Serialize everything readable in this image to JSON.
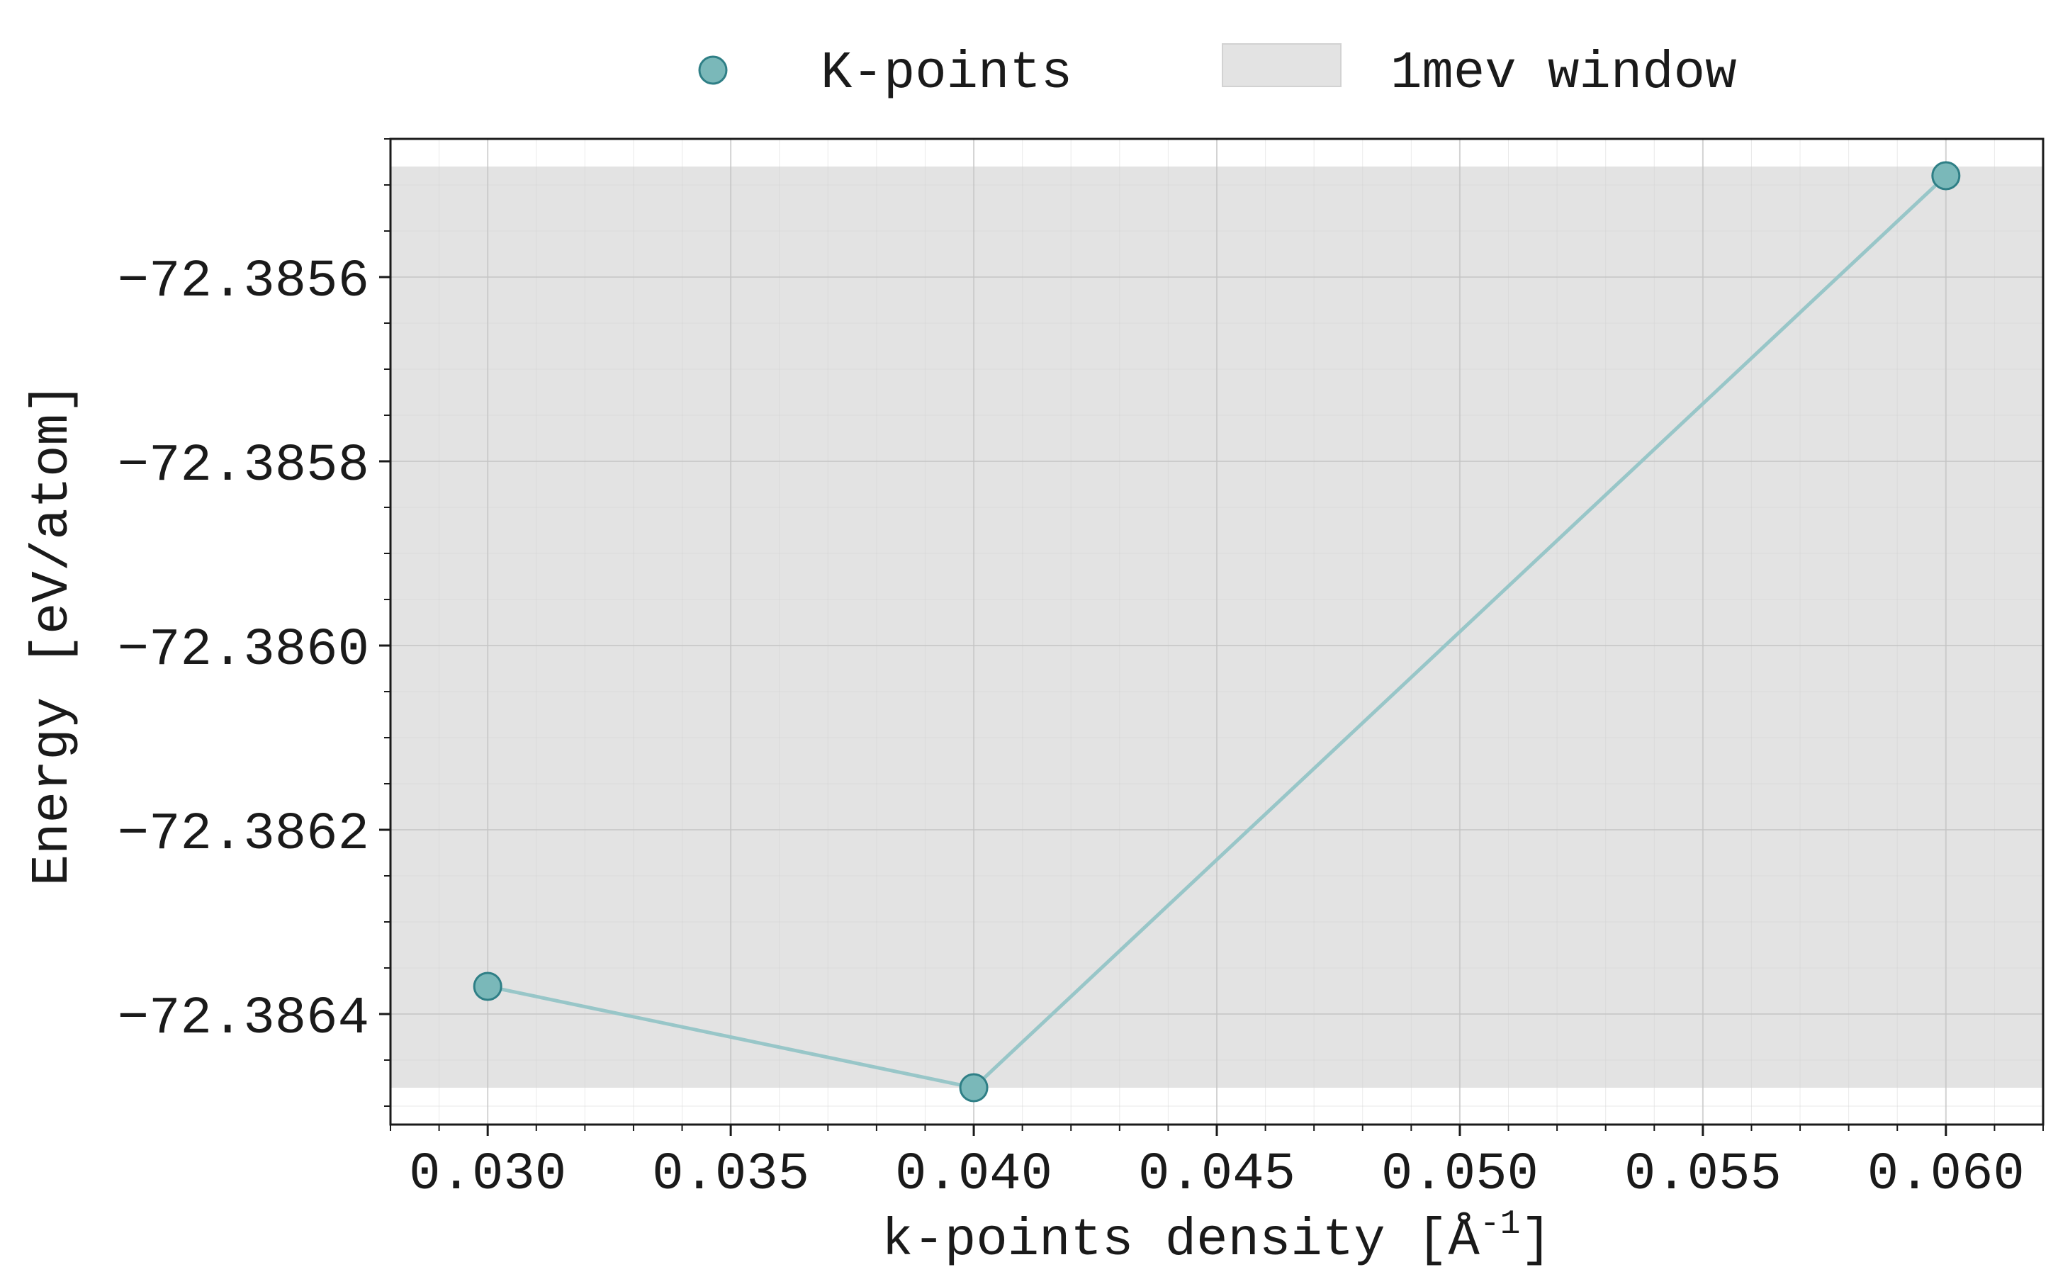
{
  "chart_data": {
    "type": "line",
    "xlabel": "k-points density [Å",
    "xlabel_sup": "-1",
    "xlabel_suffix": "]",
    "ylabel": "Energy [eV/atom]",
    "xlim": [
      0.028,
      0.062
    ],
    "ylim": [
      -72.38652,
      -72.38545
    ],
    "xticks": [
      0.03,
      0.035,
      0.04,
      0.045,
      0.05,
      0.055,
      0.06
    ],
    "xtick_labels": [
      "0.030",
      "0.035",
      "0.040",
      "0.045",
      "0.050",
      "0.055",
      "0.060"
    ],
    "yticks": [
      -72.3856,
      -72.3858,
      -72.386,
      -72.3862,
      -72.3864
    ],
    "ytick_labels": [
      "−72.3856",
      "−72.3858",
      "−72.3860",
      "−72.3862",
      "−72.3864"
    ],
    "grid": true,
    "legend_placement": "top-center, outside plot",
    "series": [
      {
        "name": "K-points",
        "x": [
          0.03,
          0.04,
          0.06
        ],
        "y": [
          -72.38637,
          -72.38648,
          -72.38549
        ],
        "marker_color": "#7ab8b9",
        "marker_edge": "#2f7f86",
        "line_color": "#98c6c8"
      }
    ],
    "band": {
      "name": "1mev window",
      "y_range": [
        -72.38648,
        -72.38548
      ],
      "color": "#e3e3e3"
    }
  }
}
